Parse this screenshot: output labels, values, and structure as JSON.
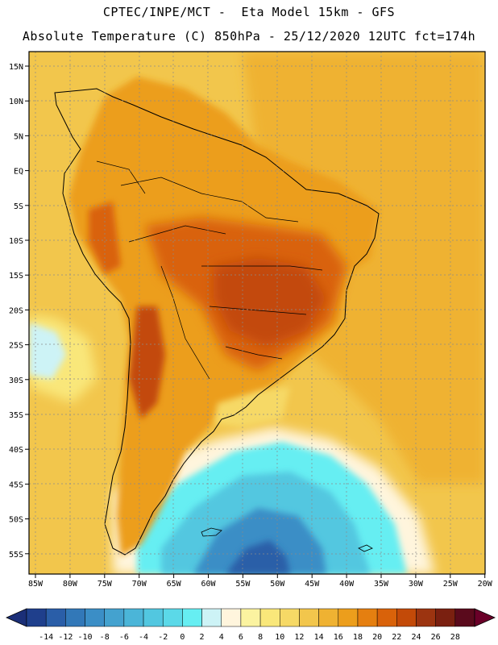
{
  "header": {
    "line1": "CPTEC/INPE/MCT -  Eta Model 15km - GFS",
    "line2": "Absolute Temperature (C) 850hPa - 25/12/2020 12UTC fct=174h"
  },
  "lat_labels": [
    "15N",
    "10N",
    "5N",
    "EQ",
    "5S",
    "10S",
    "15S",
    "20S",
    "25S",
    "30S",
    "35S",
    "40S",
    "45S",
    "50S",
    "55S"
  ],
  "lon_labels": [
    "85W",
    "80W",
    "75W",
    "70W",
    "65W",
    "60W",
    "55W",
    "50W",
    "45W",
    "40W",
    "35W",
    "30W",
    "25W",
    "20W"
  ],
  "colorbar": {
    "labels": [
      "-14",
      "-12",
      "-10",
      "-8",
      "-6",
      "-4",
      "-2",
      "0",
      "2",
      "4",
      "6",
      "8",
      "10",
      "12",
      "14",
      "16",
      "18",
      "20",
      "22",
      "24",
      "26",
      "28"
    ],
    "colors": [
      "#1f3f8c",
      "#2a5ea8",
      "#3278b8",
      "#3b8ec6",
      "#44a2cf",
      "#4bb5d8",
      "#52c7e0",
      "#5bd9e8",
      "#66eef2",
      "#cdf3f6",
      "#fff5dd",
      "#fbf3a0",
      "#f9e77a",
      "#f6d966",
      "#f2c64c",
      "#efb232",
      "#ec9e1c",
      "#e57f10",
      "#d9620a",
      "#c34a08",
      "#9c3410",
      "#7a2010",
      "#5a0a1c"
    ],
    "under_color": "#1b2f78",
    "over_color": "#6a0028"
  }
}
